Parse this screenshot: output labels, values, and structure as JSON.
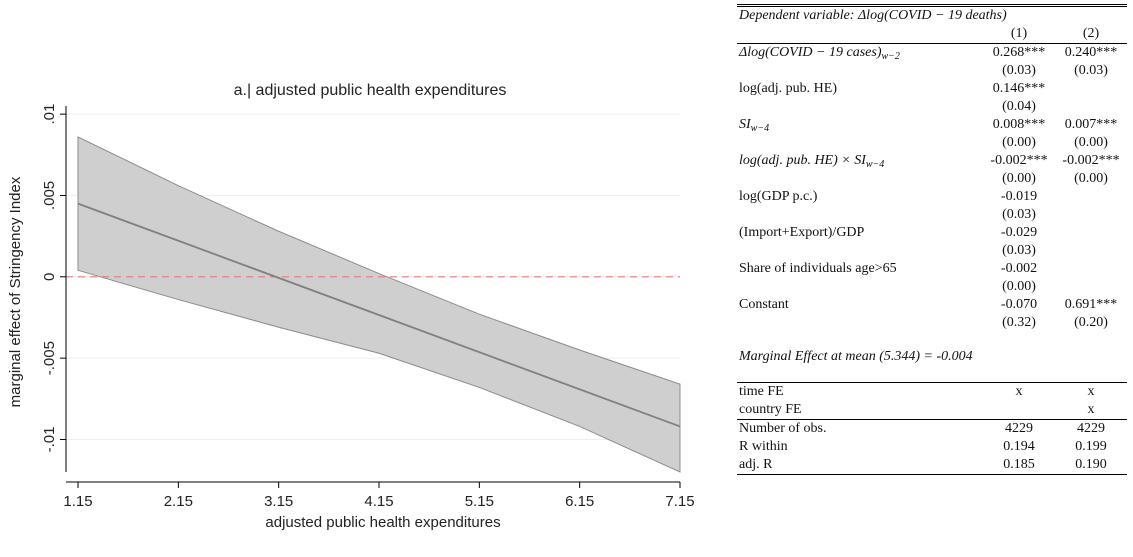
{
  "chart_data": {
    "type": "line",
    "title": "a.| adjusted public health expenditures",
    "xlabel": "adjusted public health expenditures",
    "ylabel": "marginal effect of Stringency Index",
    "xlim": [
      1.15,
      7.15
    ],
    "ylim": [
      -0.012,
      0.0105
    ],
    "x_ticks": [
      1.15,
      2.15,
      3.15,
      4.15,
      5.15,
      6.15,
      7.15
    ],
    "x_tick_labels": [
      "1.15",
      "2.15",
      "3.15",
      "4.15",
      "5.15",
      "6.15",
      "7.15"
    ],
    "y_ticks": [
      -0.01,
      -0.005,
      0,
      0.005,
      0.01
    ],
    "y_tick_labels": [
      "-.01",
      "-.005",
      "0",
      ".005",
      ".01"
    ],
    "grid": true,
    "reference_line": {
      "y": 0,
      "color": "#e87a7a",
      "style": "dashed"
    },
    "series": [
      {
        "x": [
          1.15,
          7.15
        ],
        "values": [
          0.0045,
          -0.0092
        ],
        "color": "#808080"
      }
    ],
    "band": {
      "x": [
        1.15,
        2.15,
        3.15,
        4.15,
        5.15,
        6.15,
        7.15
      ],
      "upper": [
        0.0086,
        0.0056,
        0.0028,
        0.0002,
        -0.0023,
        -0.0045,
        -0.0066
      ],
      "lower": [
        0.0004,
        -0.0014,
        -0.0031,
        -0.0047,
        -0.0068,
        -0.0092,
        -0.012
      ],
      "color": "#cfcfcf"
    },
    "plot_bg": "#ffffff",
    "grid_color": "#eaf0f3"
  },
  "table": {
    "header_dep": "Dependent variable: Δlog(COVID − 19 deaths)",
    "col1": "(1)",
    "col2": "(2)",
    "rows": [
      {
        "label": "Δlog(COVID − 19 cases)",
        "sub": "w−2",
        "italic": true,
        "c1": "0.268***",
        "c2": "0.240***"
      },
      {
        "label": "",
        "c1": "(0.03)",
        "c2": "(0.03)"
      },
      {
        "label": "log(adj. pub. HE)",
        "c1": "0.146***",
        "c2": ""
      },
      {
        "label": "",
        "c1": "(0.04)",
        "c2": ""
      },
      {
        "label": "SI",
        "sub": "w−4",
        "italic": true,
        "c1": "0.008***",
        "c2": "0.007***"
      },
      {
        "label": "",
        "c1": "(0.00)",
        "c2": "(0.00)"
      },
      {
        "label": "log(adj. pub. HE) × SI",
        "sub": "w−4",
        "italic": true,
        "c1": "-0.002***",
        "c2": "-0.002***"
      },
      {
        "label": "",
        "c1": "(0.00)",
        "c2": "(0.00)"
      },
      {
        "label": "log(GDP p.c.)",
        "c1": "-0.019",
        "c2": ""
      },
      {
        "label": "",
        "c1": "(0.03)",
        "c2": ""
      },
      {
        "label": "(Import+Export)/GDP",
        "c1": "-0.029",
        "c2": ""
      },
      {
        "label": "",
        "c1": "(0.03)",
        "c2": ""
      },
      {
        "label": "Share of individuals age>65",
        "c1": "-0.002",
        "c2": ""
      },
      {
        "label": "",
        "c1": "(0.00)",
        "c2": ""
      },
      {
        "label": "Constant",
        "c1": "-0.070",
        "c2": "0.691***"
      },
      {
        "label": "",
        "c1": "(0.32)",
        "c2": "(0.20)"
      }
    ],
    "marginal_effect": "Marginal Effect at mean (5.344) = -0.004",
    "footer_rows": [
      {
        "label": "time FE",
        "c1": "x",
        "c2": "x"
      },
      {
        "label": "country FE",
        "c1": "",
        "c2": "x"
      },
      {
        "label": "Number of obs.",
        "c1": "4229",
        "c2": "4229"
      },
      {
        "label": "R within",
        "c1": "0.194",
        "c2": "0.199"
      },
      {
        "label": "adj. R",
        "c1": "0.185",
        "c2": "0.190"
      }
    ]
  }
}
